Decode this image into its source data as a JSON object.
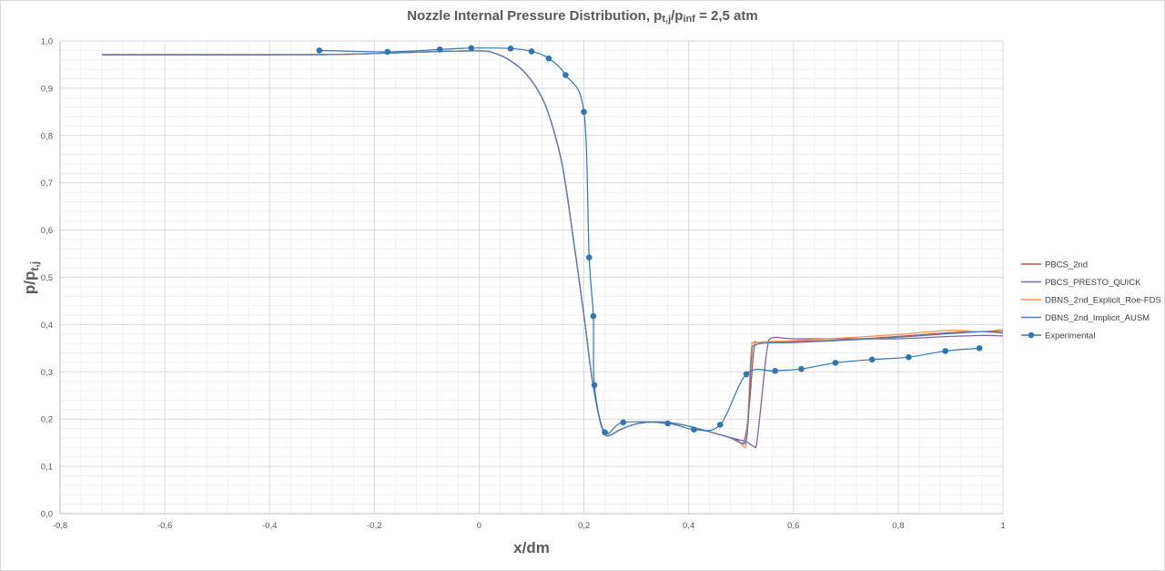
{
  "chart_data": {
    "type": "line",
    "title": {
      "prefix": "Nozzle Internal Pressure Distribution,  p",
      "sub1": "t,j",
      "mid": "/p",
      "sub2": "inf",
      "suffix": " = 2,5 atm"
    },
    "xlabel": "x/dm",
    "ylabel": {
      "main": "p/p",
      "sub": "t,j"
    },
    "xlim": [
      -0.8,
      1.0
    ],
    "ylim": [
      0.0,
      1.0
    ],
    "xticks": [
      "-0,8",
      "-0,6",
      "-0,4",
      "-0,2",
      "0",
      "0,2",
      "0,4",
      "0,6",
      "0,8",
      "1"
    ],
    "yticks": [
      "0,0",
      "0,1",
      "0,2",
      "0,3",
      "0,4",
      "0,5",
      "0,6",
      "0,7",
      "0,8",
      "0,9",
      "1,0"
    ],
    "grid": true,
    "legend_position": "right",
    "series": [
      {
        "name": "PBCS_2nd",
        "color": "#c0504d",
        "markers": false,
        "points": [
          [
            -0.72,
            0.971
          ],
          [
            -0.4,
            0.971
          ],
          [
            -0.25,
            0.972
          ],
          [
            -0.1,
            0.977
          ],
          [
            0.0,
            0.979
          ],
          [
            0.03,
            0.974
          ],
          [
            0.06,
            0.958
          ],
          [
            0.09,
            0.93
          ],
          [
            0.12,
            0.88
          ],
          [
            0.14,
            0.82
          ],
          [
            0.16,
            0.73
          ],
          [
            0.18,
            0.58
          ],
          [
            0.2,
            0.42
          ],
          [
            0.215,
            0.29
          ],
          [
            0.23,
            0.2
          ],
          [
            0.24,
            0.168
          ],
          [
            0.25,
            0.166
          ],
          [
            0.27,
            0.178
          ],
          [
            0.3,
            0.19
          ],
          [
            0.33,
            0.194
          ],
          [
            0.36,
            0.193
          ],
          [
            0.4,
            0.185
          ],
          [
            0.45,
            0.17
          ],
          [
            0.49,
            0.157
          ],
          [
            0.505,
            0.15
          ],
          [
            0.515,
            0.22
          ],
          [
            0.525,
            0.35
          ],
          [
            0.535,
            0.362
          ],
          [
            0.6,
            0.364
          ],
          [
            0.7,
            0.368
          ],
          [
            0.8,
            0.375
          ],
          [
            0.9,
            0.383
          ],
          [
            0.96,
            0.385
          ],
          [
            1.0,
            0.382
          ]
        ]
      },
      {
        "name": "PBCS_PRESTO_QUICK",
        "color": "#8064a2",
        "markers": false,
        "points": [
          [
            -0.72,
            0.971
          ],
          [
            -0.4,
            0.971
          ],
          [
            -0.25,
            0.972
          ],
          [
            -0.1,
            0.977
          ],
          [
            0.0,
            0.979
          ],
          [
            0.03,
            0.974
          ],
          [
            0.06,
            0.958
          ],
          [
            0.09,
            0.93
          ],
          [
            0.12,
            0.88
          ],
          [
            0.14,
            0.82
          ],
          [
            0.16,
            0.73
          ],
          [
            0.18,
            0.58
          ],
          [
            0.2,
            0.42
          ],
          [
            0.215,
            0.29
          ],
          [
            0.23,
            0.2
          ],
          [
            0.24,
            0.168
          ],
          [
            0.25,
            0.166
          ],
          [
            0.27,
            0.178
          ],
          [
            0.3,
            0.19
          ],
          [
            0.33,
            0.194
          ],
          [
            0.36,
            0.193
          ],
          [
            0.4,
            0.185
          ],
          [
            0.45,
            0.17
          ],
          [
            0.49,
            0.158
          ],
          [
            0.51,
            0.152
          ],
          [
            0.52,
            0.145
          ],
          [
            0.525,
            0.142
          ],
          [
            0.53,
            0.15
          ],
          [
            0.54,
            0.25
          ],
          [
            0.55,
            0.35
          ],
          [
            0.56,
            0.372
          ],
          [
            0.6,
            0.37
          ],
          [
            0.7,
            0.37
          ],
          [
            0.8,
            0.37
          ],
          [
            0.9,
            0.375
          ],
          [
            0.96,
            0.377
          ],
          [
            1.0,
            0.376
          ]
        ]
      },
      {
        "name": "DBNS_2nd_Explicit_Roe-FDS",
        "color": "#f79646",
        "markers": false,
        "points": [
          [
            -0.72,
            0.971
          ],
          [
            -0.4,
            0.971
          ],
          [
            -0.25,
            0.972
          ],
          [
            -0.1,
            0.977
          ],
          [
            0.0,
            0.979
          ],
          [
            0.03,
            0.974
          ],
          [
            0.06,
            0.958
          ],
          [
            0.09,
            0.93
          ],
          [
            0.12,
            0.88
          ],
          [
            0.14,
            0.82
          ],
          [
            0.16,
            0.73
          ],
          [
            0.18,
            0.58
          ],
          [
            0.2,
            0.42
          ],
          [
            0.215,
            0.29
          ],
          [
            0.23,
            0.2
          ],
          [
            0.24,
            0.168
          ],
          [
            0.25,
            0.166
          ],
          [
            0.27,
            0.178
          ],
          [
            0.3,
            0.19
          ],
          [
            0.33,
            0.194
          ],
          [
            0.36,
            0.193
          ],
          [
            0.4,
            0.185
          ],
          [
            0.45,
            0.17
          ],
          [
            0.48,
            0.16
          ],
          [
            0.5,
            0.148
          ],
          [
            0.505,
            0.142
          ],
          [
            0.51,
            0.15
          ],
          [
            0.515,
            0.25
          ],
          [
            0.52,
            0.35
          ],
          [
            0.53,
            0.362
          ],
          [
            0.6,
            0.366
          ],
          [
            0.7,
            0.372
          ],
          [
            0.8,
            0.379
          ],
          [
            0.9,
            0.388
          ],
          [
            0.96,
            0.385
          ],
          [
            1.0,
            0.39
          ]
        ]
      },
      {
        "name": "DBNS_2nd_Implicit_AUSM",
        "color": "#4f81bd",
        "markers": false,
        "points": [
          [
            -0.72,
            0.971
          ],
          [
            -0.4,
            0.971
          ],
          [
            -0.25,
            0.972
          ],
          [
            -0.1,
            0.977
          ],
          [
            0.0,
            0.979
          ],
          [
            0.03,
            0.974
          ],
          [
            0.06,
            0.958
          ],
          [
            0.09,
            0.93
          ],
          [
            0.12,
            0.88
          ],
          [
            0.14,
            0.82
          ],
          [
            0.16,
            0.73
          ],
          [
            0.18,
            0.58
          ],
          [
            0.2,
            0.42
          ],
          [
            0.215,
            0.29
          ],
          [
            0.23,
            0.2
          ],
          [
            0.24,
            0.168
          ],
          [
            0.25,
            0.166
          ],
          [
            0.27,
            0.178
          ],
          [
            0.3,
            0.19
          ],
          [
            0.33,
            0.194
          ],
          [
            0.36,
            0.193
          ],
          [
            0.4,
            0.185
          ],
          [
            0.45,
            0.17
          ],
          [
            0.48,
            0.16
          ],
          [
            0.5,
            0.15
          ],
          [
            0.51,
            0.155
          ],
          [
            0.515,
            0.22
          ],
          [
            0.52,
            0.33
          ],
          [
            0.53,
            0.358
          ],
          [
            0.6,
            0.362
          ],
          [
            0.7,
            0.367
          ],
          [
            0.8,
            0.373
          ],
          [
            0.9,
            0.381
          ],
          [
            0.96,
            0.385
          ],
          [
            1.0,
            0.386
          ]
        ]
      },
      {
        "name": "Experimental",
        "color": "#2e75b6",
        "markers": true,
        "points": [
          [
            -0.305,
            0.98
          ],
          [
            -0.175,
            0.977
          ],
          [
            -0.075,
            0.982
          ],
          [
            -0.015,
            0.985
          ],
          [
            0.06,
            0.984
          ],
          [
            0.1,
            0.978
          ],
          [
            0.133,
            0.963
          ],
          [
            0.165,
            0.928
          ],
          [
            0.2,
            0.85
          ],
          [
            0.21,
            0.542
          ],
          [
            0.218,
            0.418
          ],
          [
            0.22,
            0.272
          ],
          [
            0.24,
            0.172
          ],
          [
            0.275,
            0.193
          ],
          [
            0.36,
            0.191
          ],
          [
            0.41,
            0.178
          ],
          [
            0.46,
            0.188
          ],
          [
            0.51,
            0.295
          ],
          [
            0.565,
            0.302
          ],
          [
            0.615,
            0.306
          ],
          [
            0.68,
            0.319
          ],
          [
            0.75,
            0.326
          ],
          [
            0.82,
            0.331
          ],
          [
            0.89,
            0.344
          ],
          [
            0.955,
            0.35
          ]
        ]
      }
    ]
  }
}
